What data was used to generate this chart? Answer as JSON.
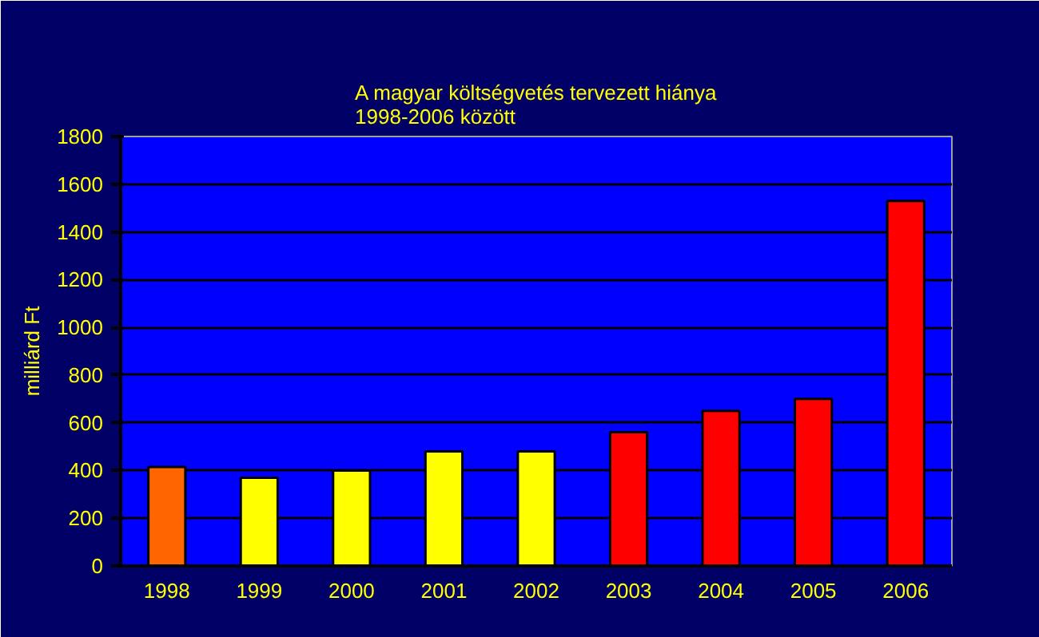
{
  "chart_data": {
    "type": "bar",
    "title": "A magyar költségvetés tervezett hiánya\n1998-2006 között",
    "ylabel": "milliárd Ft",
    "categories": [
      "1998",
      "1999",
      "2000",
      "2001",
      "2002",
      "2003",
      "2004",
      "2005",
      "2006"
    ],
    "values": [
      415,
      370,
      400,
      480,
      480,
      560,
      650,
      700,
      1530
    ],
    "colors": [
      "#ff6600",
      "#ffff00",
      "#ffff00",
      "#ffff00",
      "#ffff00",
      "#ff0000",
      "#ff0000",
      "#ff0000",
      "#ff0000"
    ],
    "ylim": [
      0,
      1800
    ],
    "yticks": [
      0,
      200,
      400,
      600,
      800,
      1000,
      1200,
      1400,
      1600,
      1800
    ],
    "grid": "y"
  }
}
